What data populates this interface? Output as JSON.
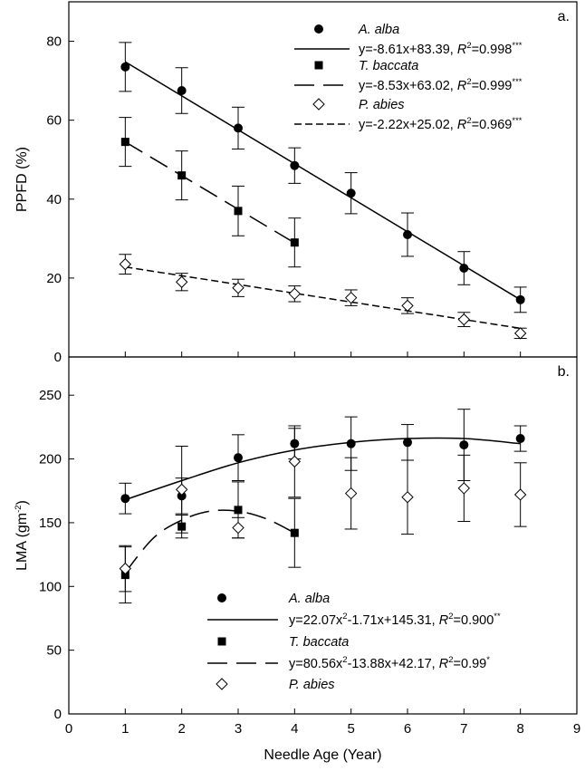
{
  "chart_data": [
    {
      "type": "scatter",
      "panel_label": "a.",
      "ylabel": "PPFD (%)",
      "xlim": [
        0,
        9
      ],
      "ylim": [
        0,
        90
      ],
      "yticks": [
        0,
        20,
        40,
        60,
        80
      ],
      "series": [
        {
          "name": "A. alba",
          "marker": "filled-circle",
          "x": [
            1,
            2,
            3,
            4,
            5,
            6,
            7,
            8
          ],
          "y": [
            73.5,
            67.5,
            58,
            48.5,
            41.5,
            31,
            22.5,
            14.5
          ],
          "err": [
            6.2,
            5.8,
            5.3,
            4.5,
            5.2,
            5.5,
            4.2,
            3.2
          ],
          "fit": {
            "kind": "linear",
            "coef": [
              -8.61,
              83.39
            ],
            "x_range": [
              1,
              8
            ],
            "dash": "solid",
            "eq_text": "y=-8.61x+83.39, ",
            "r2_val": "=0.998",
            "sig": "***"
          }
        },
        {
          "name": "T. baccata",
          "marker": "filled-square",
          "x": [
            1,
            2,
            3,
            4
          ],
          "y": [
            54.5,
            46,
            37,
            29
          ],
          "err": [
            6.2,
            6.2,
            6.3,
            6.2
          ],
          "fit": {
            "kind": "linear",
            "coef": [
              -8.53,
              63.02
            ],
            "x_range": [
              1,
              4
            ],
            "dash": "long",
            "eq_text": "y=-8.53x+63.02, ",
            "r2_val": "=0.999",
            "sig": "***"
          }
        },
        {
          "name": "P. abies",
          "marker": "open-diamond",
          "x": [
            1,
            2,
            3,
            4,
            5,
            6,
            7,
            8
          ],
          "y": [
            23.5,
            19,
            17.5,
            16,
            15,
            13,
            9.5,
            6
          ],
          "err": [
            2.5,
            2.2,
            2.2,
            2,
            2,
            2,
            1.8,
            1.3
          ],
          "fit": {
            "kind": "linear",
            "coef": [
              -2.22,
              25.02
            ],
            "x_range": [
              1,
              8
            ],
            "dash": "short",
            "eq_text": "y=-2.22x+25.02, ",
            "r2_val": "=0.969",
            "sig": "***"
          }
        }
      ]
    },
    {
      "type": "scatter",
      "panel_label": "b.",
      "ylabel": "LMA (gm",
      "ylabel_sup": "-2",
      "ylabel_end": ")",
      "xlabel": "Needle Age (Year)",
      "xlim": [
        0,
        9
      ],
      "xticks": [
        0,
        1,
        2,
        3,
        4,
        5,
        6,
        7,
        8,
        9
      ],
      "ylim": [
        0,
        280
      ],
      "yticks": [
        0,
        50,
        100,
        150,
        200,
        250
      ],
      "series": [
        {
          "name": "A. alba",
          "marker": "filled-circle",
          "x": [
            1,
            2,
            3,
            4,
            5,
            6,
            7,
            8
          ],
          "y": [
            169,
            171,
            201,
            212,
            212,
            213,
            211,
            216
          ],
          "err": [
            12,
            14,
            18,
            12,
            21,
            14,
            28,
            10
          ],
          "fit": {
            "kind": "curve",
            "dash": "solid",
            "points": [
              [
                1,
                168
              ],
              [
                2,
                183
              ],
              [
                3,
                197
              ],
              [
                4,
                207
              ],
              [
                5,
                213
              ],
              [
                6,
                216
              ],
              [
                7,
                216
              ],
              [
                8,
                212
              ]
            ],
            "eq_prefix": "y=22.07x",
            "eq_sup": "2",
            "eq_mid": "-1.71x+145.31, ",
            "r2_val": "=0.900",
            "sig": "**"
          }
        },
        {
          "name": "T. baccata",
          "marker": "filled-square",
          "x": [
            1,
            2,
            3,
            4
          ],
          "y": [
            109,
            147,
            160,
            142
          ],
          "err": [
            22,
            9,
            22,
            27
          ],
          "fit": {
            "kind": "curve",
            "dash": "long",
            "points": [
              [
                1,
                111
              ],
              [
                1.5,
                138
              ],
              [
                2,
                152
              ],
              [
                2.5,
                159
              ],
              [
                3,
                159
              ],
              [
                3.5,
                153
              ],
              [
                4,
                142
              ]
            ],
            "eq_prefix": "y=80.56x",
            "eq_sup": "2",
            "eq_mid": "-13.88x+42.17, ",
            "r2_val": "=0.99",
            "sig": "*"
          }
        },
        {
          "name": "P. abies",
          "marker": "open-diamond",
          "x": [
            1,
            2,
            3,
            4,
            5,
            6,
            7,
            8
          ],
          "y": [
            114,
            176,
            146,
            198,
            173,
            170,
            177,
            172
          ],
          "err": [
            18,
            34,
            8,
            28,
            28,
            29,
            26,
            25
          ]
        }
      ]
    }
  ]
}
